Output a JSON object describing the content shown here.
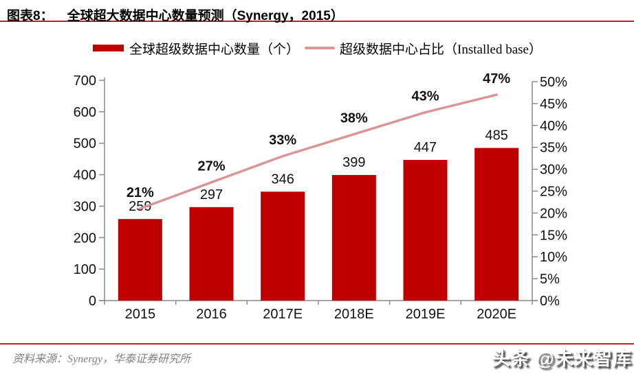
{
  "header": {
    "figure_label": "图表8：",
    "figure_title": "全球超大数据中心数量预测（Synergy，2015）"
  },
  "legend": {
    "bar_label": "全球超级数据中心数量（个）",
    "line_label": "超级数据中心占比（Installed base）"
  },
  "chart_data": {
    "type": "bar",
    "subtype": "bar+line-combo",
    "categories": [
      "2015",
      "2016",
      "2017E",
      "2018E",
      "2019E",
      "2020E"
    ],
    "series": [
      {
        "name": "全球超级数据中心数量（个）",
        "type": "bar",
        "axis": "left",
        "values": [
          259,
          297,
          346,
          399,
          447,
          485
        ],
        "point_labels": [
          "259",
          "297",
          "346",
          "399",
          "447",
          "485"
        ],
        "color": "#c00000"
      },
      {
        "name": "超级数据中心占比（Installed base）",
        "type": "line",
        "axis": "right",
        "values": [
          21,
          27,
          33,
          38,
          43,
          47
        ],
        "point_labels": [
          "21%",
          "27%",
          "33%",
          "38%",
          "43%",
          "47%"
        ],
        "color": "#d99694"
      }
    ],
    "left_axis": {
      "min": 0,
      "max": 700,
      "step": 100
    },
    "right_axis": {
      "min": 0,
      "max": 50,
      "step": 5,
      "suffix": "%"
    },
    "grid": false,
    "legend_position": "top"
  },
  "footer": {
    "source": "资料来源：Synergy，华泰证券研究所"
  },
  "watermark": {
    "text": "头条 @未来智库"
  },
  "colors": {
    "bar_red": "#c00000",
    "line_pink": "#d99694",
    "rule_red": "#c41e1e",
    "axis_gray": "#8a8a8a",
    "label_black": "#111111",
    "source_gray": "#7f7f7f"
  }
}
